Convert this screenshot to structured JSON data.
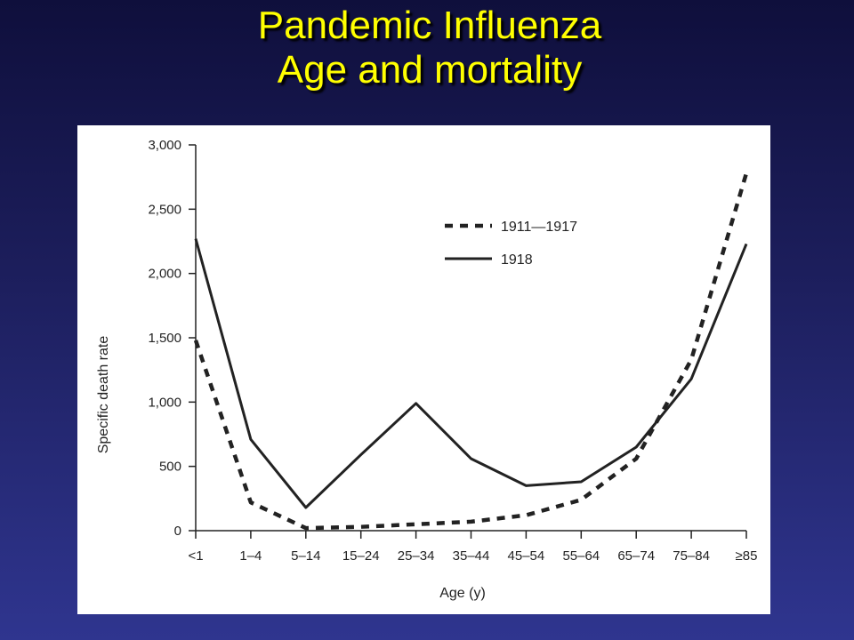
{
  "slide": {
    "title_line1": "Pandemic Influenza",
    "title_line2": "Age and mortality"
  },
  "colors": {
    "title": "#ffff00",
    "background_top": "#0f0f3c",
    "background_bottom": "#2f358f",
    "panel": "#ffffff",
    "ink": "#222222"
  },
  "chart_data": {
    "type": "line",
    "xlabel": "Age (y)",
    "ylabel": "Specific death rate",
    "categories": [
      "<1",
      "1–4",
      "5–14",
      "15–24",
      "25–34",
      "35–44",
      "45–54",
      "55–64",
      "65–74",
      "75–84",
      "≥85"
    ],
    "ylim": [
      0,
      3000
    ],
    "yticks": [
      0,
      500,
      1000,
      1500,
      2000,
      2500,
      3000
    ],
    "ytick_labels": [
      "0",
      "500",
      "1,000",
      "1,500",
      "2,000",
      "2,500",
      "3,000"
    ],
    "grid": false,
    "legend_position": "top-right",
    "series": [
      {
        "name": "1911—1917",
        "style": "dashed",
        "values": [
          1480,
          220,
          20,
          30,
          50,
          70,
          120,
          240,
          560,
          1330,
          2780
        ]
      },
      {
        "name": "1918",
        "style": "solid",
        "values": [
          2270,
          710,
          180,
          590,
          990,
          560,
          350,
          380,
          650,
          1180,
          2230
        ]
      }
    ]
  }
}
